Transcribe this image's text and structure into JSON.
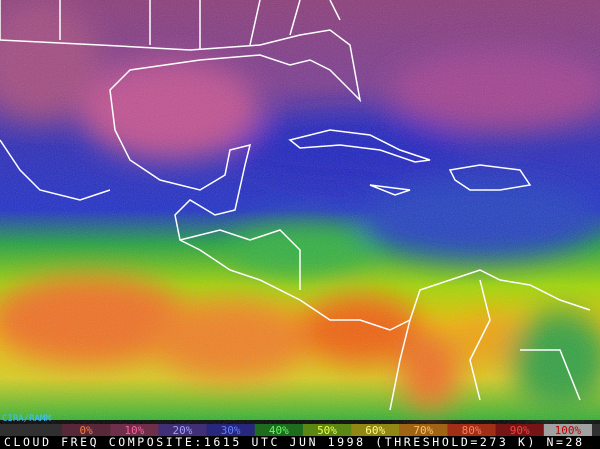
{
  "credit": "CIRA/RAMM",
  "legend": {
    "labels": [
      "0%",
      "10%",
      "20%",
      "30%",
      "40%",
      "50%",
      "60%",
      "70%",
      "80%",
      "90%",
      "100%"
    ]
  },
  "caption": "CLOUD FREQ COMPOSITE:1615 UTC JUN 1998 (THRESHOLD=273 K) N=28"
}
